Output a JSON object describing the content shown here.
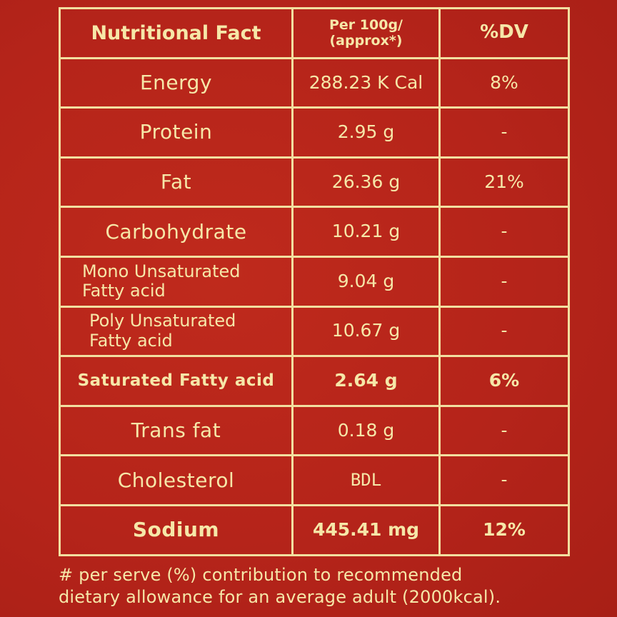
{
  "table": {
    "header": {
      "nutrient": "Nutritional Fact",
      "per_line1": "Per 100g/",
      "per_line2": "(approx*)",
      "dv": "%DV"
    },
    "rows": [
      {
        "nutrient": "Energy",
        "value": "288.23 K Cal",
        "dv": "8%"
      },
      {
        "nutrient": "Protein",
        "value": "2.95 g",
        "dv": "-"
      },
      {
        "nutrient": "Fat",
        "value": "26.36 g",
        "dv": "21%"
      },
      {
        "nutrient": "Carbohydrate",
        "value": "10.21 g",
        "dv": "-"
      },
      {
        "nutrient_line1": "Mono Unsaturated",
        "nutrient_line2": "Fatty acid",
        "value": "9.04 g",
        "dv": "-"
      },
      {
        "nutrient_line1": "Poly Unsaturated",
        "nutrient_line2": "Fatty acid",
        "value": "10.67 g",
        "dv": "-"
      },
      {
        "nutrient": "Saturated Fatty acid",
        "value": "2.64 g",
        "dv": "6%"
      },
      {
        "nutrient": "Trans fat",
        "value": "0.18 g",
        "dv": "-"
      },
      {
        "nutrient": "Cholesterol",
        "value": "BDL",
        "dv": "-"
      },
      {
        "nutrient": "Sodium",
        "value": "445.41 mg",
        "dv": "12%"
      }
    ]
  },
  "footnote": {
    "line1": "# per serve (%) contribution to recommended",
    "line2": "dietary allowance for an average adult (2000kcal)."
  },
  "colors": {
    "background": "#b5241a",
    "text": "#f6e7a8",
    "border": "#f2dfa0"
  }
}
